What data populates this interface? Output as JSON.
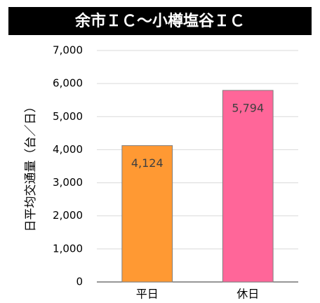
{
  "chart_data": {
    "type": "bar",
    "title": "余市ＩＣ～小樽塩谷ＩＣ",
    "y_label": "日平均交通量（台／日）",
    "categories": [
      "平日",
      "休日"
    ],
    "values": [
      4124,
      5794
    ],
    "value_labels": [
      "4,124",
      "5,794"
    ],
    "colors": [
      "#ff9933",
      "#ff6699"
    ],
    "ylim": [
      0,
      7000
    ],
    "yticks": [
      0,
      {
        "value": 1000,
        "label": "1,000"
      },
      {
        "value": 2000,
        "label": "2,000"
      },
      {
        "value": 3000,
        "label": "3,000"
      },
      {
        "value": 4000,
        "label": "4,000"
      },
      {
        "value": 5000,
        "label": "5,000"
      },
      {
        "value": 6000,
        "label": "6,000"
      },
      {
        "value": 7000,
        "label": "7,000"
      }
    ],
    "grid": true
  }
}
